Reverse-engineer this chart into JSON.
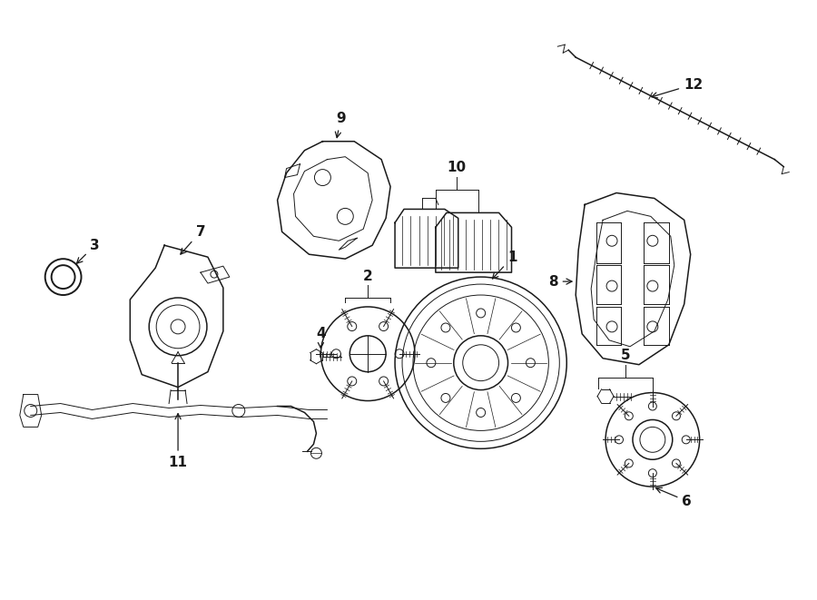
{
  "background_color": "#ffffff",
  "line_color": "#1a1a1a",
  "fig_width": 9.0,
  "fig_height": 6.61,
  "dpi": 100,
  "lw": 1.1,
  "lw_thin": 0.7,
  "label_fontsize": 11
}
